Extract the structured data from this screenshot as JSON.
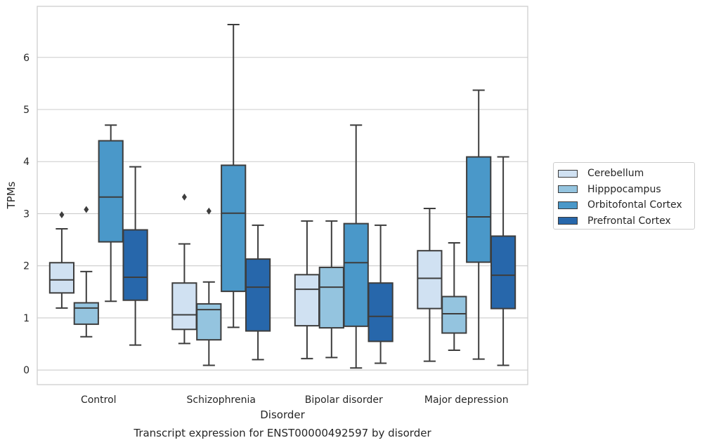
{
  "chart_data": {
    "type": "box",
    "title": "Transcript expression for ENST00000492597 by disorder",
    "xlabel": "Disorder",
    "ylabel": "TPMs",
    "ylim": [
      -0.28,
      6.98
    ],
    "yticks": [
      0,
      1,
      2,
      3,
      4,
      5,
      6
    ],
    "grid": "horizontal",
    "legend_position": "right",
    "categories": [
      "Control",
      "Schizophrenia",
      "Bipolar disorder",
      "Major depression"
    ],
    "series": [
      {
        "name": "Cerebellum",
        "color": "#d0e1f2",
        "boxes": [
          {
            "whisker_low": 1.19,
            "q1": 1.48,
            "median": 1.73,
            "q3": 2.06,
            "whisker_high": 2.71,
            "outliers": [
              2.98
            ]
          },
          {
            "whisker_low": 0.51,
            "q1": 0.78,
            "median": 1.06,
            "q3": 1.67,
            "whisker_high": 2.42,
            "outliers": [
              3.32
            ]
          },
          {
            "whisker_low": 0.22,
            "q1": 0.85,
            "median": 1.55,
            "q3": 1.83,
            "whisker_high": 2.86,
            "outliers": []
          },
          {
            "whisker_low": 0.17,
            "q1": 1.18,
            "median": 1.76,
            "q3": 2.29,
            "whisker_high": 3.1,
            "outliers": []
          }
        ]
      },
      {
        "name": "Hipppocampus",
        "color": "#94c4df",
        "boxes": [
          {
            "whisker_low": 0.64,
            "q1": 0.88,
            "median": 1.19,
            "q3": 1.29,
            "whisker_high": 1.89,
            "outliers": [
              3.08
            ]
          },
          {
            "whisker_low": 0.09,
            "q1": 0.58,
            "median": 1.16,
            "q3": 1.27,
            "whisker_high": 1.69,
            "outliers": [
              3.05
            ]
          },
          {
            "whisker_low": 0.24,
            "q1": 0.81,
            "median": 1.59,
            "q3": 1.97,
            "whisker_high": 2.86,
            "outliers": []
          },
          {
            "whisker_low": 0.38,
            "q1": 0.71,
            "median": 1.08,
            "q3": 1.41,
            "whisker_high": 2.44,
            "outliers": []
          }
        ]
      },
      {
        "name": "Orbitofontal Cortex",
        "color": "#4a98c9",
        "boxes": [
          {
            "whisker_low": 1.32,
            "q1": 2.46,
            "median": 3.32,
            "q3": 4.4,
            "whisker_high": 4.7,
            "outliers": []
          },
          {
            "whisker_low": 0.82,
            "q1": 1.51,
            "median": 3.01,
            "q3": 3.93,
            "whisker_high": 6.63,
            "outliers": []
          },
          {
            "whisker_low": 0.04,
            "q1": 0.84,
            "median": 2.06,
            "q3": 2.81,
            "whisker_high": 4.7,
            "outliers": []
          },
          {
            "whisker_low": 0.21,
            "q1": 2.07,
            "median": 2.94,
            "q3": 4.09,
            "whisker_high": 5.37,
            "outliers": []
          }
        ]
      },
      {
        "name": "Prefrontal Cortex",
        "color": "#2767ab",
        "boxes": [
          {
            "whisker_low": 0.48,
            "q1": 1.34,
            "median": 1.78,
            "q3": 2.69,
            "whisker_high": 3.9,
            "outliers": []
          },
          {
            "whisker_low": 0.2,
            "q1": 0.75,
            "median": 1.59,
            "q3": 2.13,
            "whisker_high": 2.78,
            "outliers": []
          },
          {
            "whisker_low": 0.13,
            "q1": 0.55,
            "median": 1.03,
            "q3": 1.67,
            "whisker_high": 2.78,
            "outliers": []
          },
          {
            "whisker_low": 0.09,
            "q1": 1.18,
            "median": 1.82,
            "q3": 2.57,
            "whisker_high": 4.09,
            "outliers": []
          }
        ]
      }
    ]
  }
}
